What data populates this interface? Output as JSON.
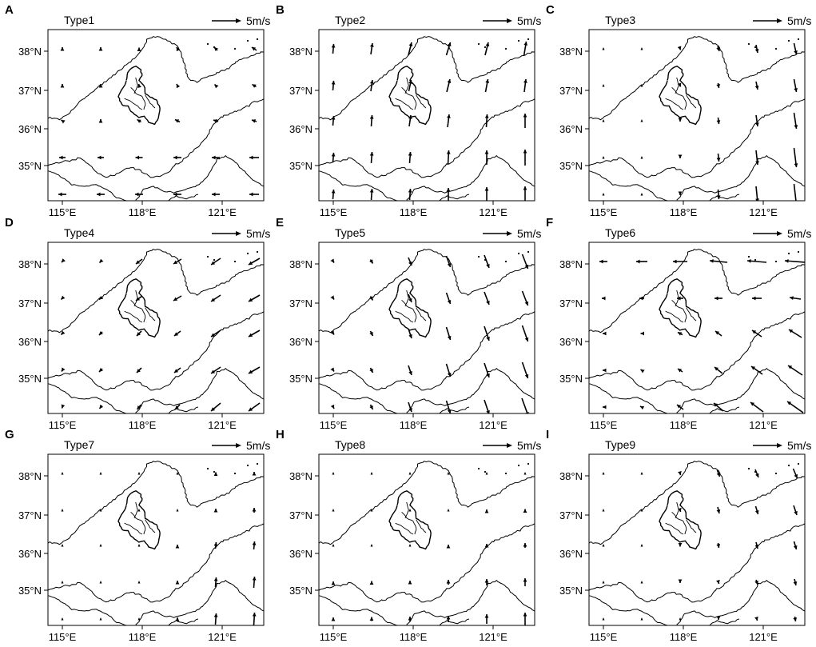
{
  "figure": {
    "reference_vector": {
      "label": "5m/s",
      "speed_ms": 5
    },
    "lon_ticks": [
      "115°E",
      "118°E",
      "121°E"
    ],
    "lat_ticks": [
      "38°N",
      "37°N",
      "36°N",
      "35°N"
    ],
    "panels": [
      {
        "letter": "A",
        "type_label": "Type1"
      },
      {
        "letter": "B",
        "type_label": "Type2"
      },
      {
        "letter": "C",
        "type_label": "Type3"
      },
      {
        "letter": "D",
        "type_label": "Type4"
      },
      {
        "letter": "E",
        "type_label": "Type5"
      },
      {
        "letter": "F",
        "type_label": "Type6"
      },
      {
        "letter": "G",
        "type_label": "Type7"
      },
      {
        "letter": "H",
        "type_label": "Type8"
      },
      {
        "letter": "I",
        "type_label": "Type9"
      }
    ]
  }
}
